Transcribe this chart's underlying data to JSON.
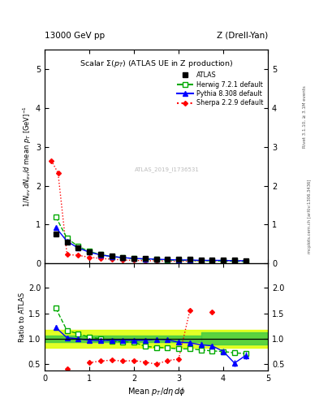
{
  "top_label_left": "13000 GeV pp",
  "top_label_right": "Z (Drell-Yan)",
  "title": "Scalar $\\Sigma(p_T)$ (ATLAS UE in Z production)",
  "ylabel_main": "$1/N_{ev}\\, dN_{ev}/d$ mean $p_T$ [GeV]$^{-1}$",
  "ylabel_ratio": "Ratio to ATLAS",
  "xlabel": "Mean $p_T/d\\eta\\, d\\phi$",
  "watermark": "ATLAS_2019_I1736531",
  "right_label_top": "Rivet 3.1.10, ≥ 3.1M events",
  "right_label_bottom": "mcplots.cern.ch [arXiv:1306.3436]",
  "atlas_x": [
    0.25,
    0.5,
    0.75,
    1.0,
    1.25,
    1.5,
    1.75,
    2.0,
    2.25,
    2.5,
    2.75,
    3.0,
    3.25,
    3.5,
    3.75,
    4.0,
    4.25,
    4.5
  ],
  "atlas_y": [
    0.76,
    0.56,
    0.4,
    0.3,
    0.23,
    0.19,
    0.16,
    0.14,
    0.13,
    0.12,
    0.11,
    0.1,
    0.1,
    0.09,
    0.09,
    0.08,
    0.08,
    0.07
  ],
  "atlas_yerr": [
    0.03,
    0.02,
    0.015,
    0.012,
    0.01,
    0.008,
    0.007,
    0.006,
    0.006,
    0.005,
    0.005,
    0.005,
    0.004,
    0.004,
    0.004,
    0.004,
    0.003,
    0.003
  ],
  "herwig_x": [
    0.25,
    0.5,
    0.75,
    1.0,
    1.25,
    1.5,
    1.75,
    2.0,
    2.25,
    2.5,
    2.75,
    3.0,
    3.25,
    3.5,
    3.75,
    4.0,
    4.25,
    4.5
  ],
  "herwig_y": [
    1.2,
    0.65,
    0.44,
    0.31,
    0.23,
    0.18,
    0.15,
    0.13,
    0.11,
    0.1,
    0.09,
    0.08,
    0.08,
    0.07,
    0.07,
    0.06,
    0.06,
    0.05
  ],
  "pythia_x": [
    0.25,
    0.5,
    0.75,
    1.0,
    1.25,
    1.5,
    1.75,
    2.0,
    2.25,
    2.5,
    2.75,
    3.0,
    3.25,
    3.5,
    3.75,
    4.0,
    4.25,
    4.5
  ],
  "pythia_y": [
    0.93,
    0.57,
    0.4,
    0.29,
    0.22,
    0.18,
    0.15,
    0.13,
    0.12,
    0.11,
    0.1,
    0.09,
    0.09,
    0.08,
    0.08,
    0.08,
    0.07,
    0.07
  ],
  "sherpa_x": [
    0.15,
    0.3,
    0.5,
    0.75,
    1.0,
    1.25,
    1.5,
    1.75,
    2.0,
    2.25,
    2.5,
    2.75,
    3.0,
    3.25,
    3.5,
    3.75,
    4.0,
    4.25,
    4.5
  ],
  "sherpa_y": [
    2.65,
    2.33,
    0.23,
    0.21,
    0.16,
    0.13,
    0.11,
    0.09,
    0.08,
    0.07,
    0.07,
    0.06,
    0.06,
    0.06,
    0.07,
    0.07,
    0.07,
    0.07,
    0.07
  ],
  "ratio_herwig_x": [
    0.25,
    0.5,
    0.75,
    1.0,
    1.25,
    1.5,
    1.75,
    2.0,
    2.25,
    2.5,
    2.75,
    3.0,
    3.25,
    3.5,
    3.75,
    4.0,
    4.25,
    4.5
  ],
  "ratio_herwig_y": [
    1.6,
    1.16,
    1.1,
    1.03,
    1.0,
    0.95,
    0.94,
    0.93,
    0.85,
    0.83,
    0.82,
    0.8,
    0.8,
    0.78,
    0.76,
    0.75,
    0.72,
    0.71
  ],
  "ratio_pythia_x": [
    0.25,
    0.5,
    0.75,
    1.0,
    1.25,
    1.5,
    1.75,
    2.0,
    2.25,
    2.5,
    2.75,
    3.0,
    3.25,
    3.5,
    3.75,
    4.0,
    4.25,
    4.5
  ],
  "ratio_pythia_y": [
    1.22,
    1.02,
    1.0,
    0.97,
    0.96,
    0.97,
    0.97,
    0.97,
    0.97,
    0.99,
    0.98,
    0.93,
    0.92,
    0.88,
    0.86,
    0.75,
    0.52,
    0.67
  ],
  "ratio_pythia_yerr": [
    0.05,
    0.03,
    0.03,
    0.03,
    0.03,
    0.03,
    0.03,
    0.03,
    0.04,
    0.04,
    0.04,
    0.04,
    0.05,
    0.05,
    0.05,
    0.06,
    0.06,
    0.07
  ],
  "ratio_sherpa_x": [
    0.15,
    0.3,
    0.5,
    0.75,
    1.0,
    1.25,
    1.5,
    1.75,
    2.0,
    2.25,
    2.5,
    2.75,
    3.0,
    3.25,
    3.5,
    3.75,
    4.0,
    4.25,
    4.5
  ],
  "ratio_sherpa_y": [
    null,
    null,
    0.4,
    null,
    0.53,
    0.56,
    0.58,
    0.56,
    0.57,
    0.54,
    0.5,
    0.57,
    0.6,
    1.55,
    null,
    1.52,
    null,
    null,
    null
  ],
  "band_outer_x1": 0.0,
  "band_outer_x2": 5.0,
  "band_outer_ylo": 0.82,
  "band_outer_yhi": 1.18,
  "band_inner_x1": 0.0,
  "band_inner_x2": 3.5,
  "band_inner_ylo": 0.94,
  "band_inner_yhi": 1.06,
  "band_outer2_x1": 3.5,
  "band_outer2_x2": 5.0,
  "band_outer2_ylo": 0.88,
  "band_outer2_yhi": 1.12,
  "ylim_main": [
    0.0,
    5.5
  ],
  "ylim_ratio": [
    0.38,
    2.48
  ],
  "xlim": [
    0.0,
    5.0
  ],
  "yticks_main": [
    0,
    1,
    2,
    3,
    4,
    5
  ],
  "yticks_ratio": [
    0.5,
    1.0,
    1.5,
    2.0
  ],
  "color_atlas": "#000000",
  "color_herwig": "#00aa00",
  "color_pythia": "#0000ff",
  "color_sherpa": "#ff0000",
  "color_band_inner": "#44cc44",
  "color_band_outer": "#ddff00"
}
